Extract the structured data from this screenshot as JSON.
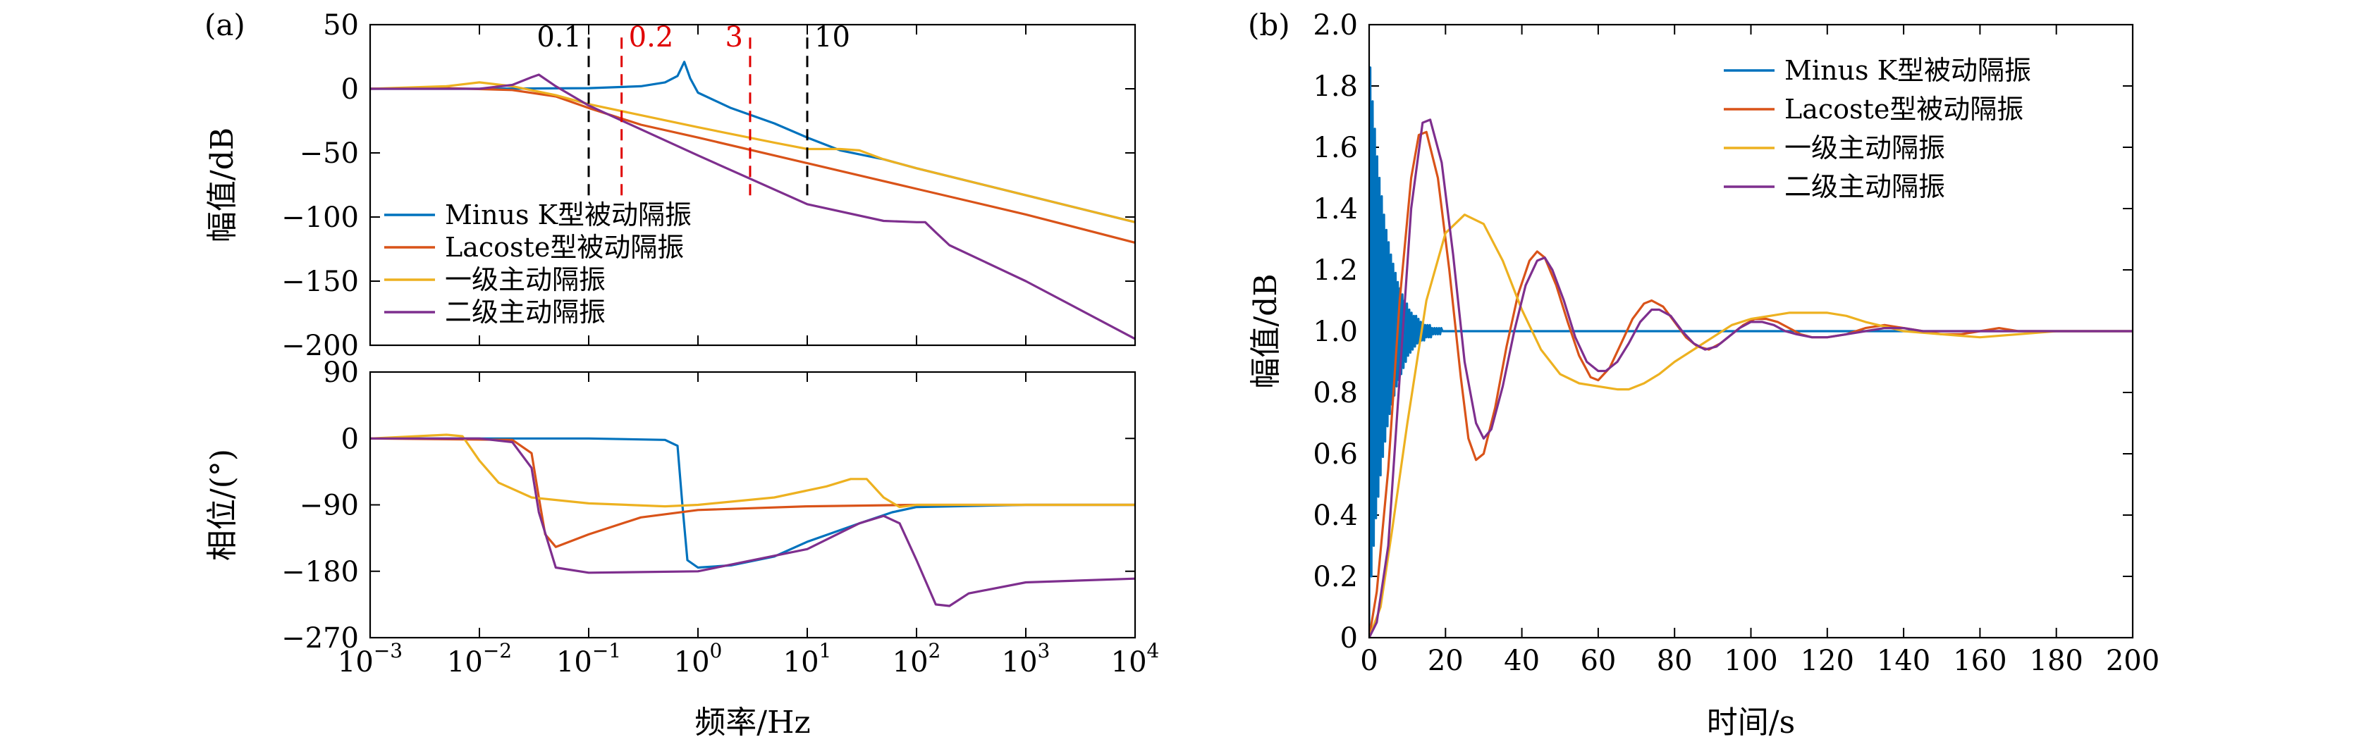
{
  "colors": {
    "minus_k": "#0072BD",
    "lacoste": "#D95319",
    "single_active": "#EDB120",
    "double_active": "#7E2F8E",
    "marker_black": "#000000",
    "marker_red": "#E00000"
  },
  "panel_labels": {
    "a": "(a)",
    "b": "(b)"
  },
  "chart_data": [
    {
      "id": "magnitude",
      "type": "line",
      "xscale": "log",
      "xlim": [
        0.001,
        10000
      ],
      "ylim": [
        -200,
        50
      ],
      "yticks": [
        -200,
        -150,
        -100,
        -50,
        0,
        50
      ],
      "ytick_labels": [
        "−200",
        "−150",
        "−100",
        "−50",
        "0",
        "50"
      ],
      "ylabel": "幅值/dB",
      "legend_position": "lower-left",
      "markers": [
        {
          "x": 0.1,
          "label": "0.1",
          "color": "black"
        },
        {
          "x": 0.2,
          "label": "0.2",
          "color": "red"
        },
        {
          "x": 3,
          "label": "3",
          "color": "red"
        },
        {
          "x": 10,
          "label": "10",
          "color": "black"
        }
      ],
      "series": [
        {
          "name": "Minus K型被动隔振",
          "color": "#0072BD",
          "x": [
            0.001,
            0.01,
            0.1,
            0.3,
            0.5,
            0.65,
            0.75,
            0.85,
            1,
            2,
            5,
            10,
            20,
            50,
            100,
            1000,
            10000
          ],
          "y": [
            0,
            0,
            0.5,
            2,
            5,
            10,
            21,
            8,
            -3,
            -15,
            -27,
            -38,
            -48,
            -55,
            -62,
            -83,
            -104
          ]
        },
        {
          "name": "Lacoste型被动隔振",
          "color": "#D95319",
          "x": [
            0.001,
            0.005,
            0.02,
            0.05,
            0.1,
            0.3,
            1,
            10,
            100,
            1000,
            10000
          ],
          "y": [
            0,
            0.5,
            -1,
            -6,
            -15,
            -28,
            -38,
            -58,
            -78,
            -98,
            -120
          ]
        },
        {
          "name": "一级主动隔振",
          "color": "#EDB120",
          "x": [
            0.001,
            0.005,
            0.01,
            0.02,
            0.05,
            0.1,
            1,
            5,
            10,
            20,
            30,
            50,
            100,
            1000,
            10000
          ],
          "y": [
            0,
            2,
            5,
            2,
            -5,
            -12,
            -30,
            -42,
            -47,
            -47,
            -48,
            -55,
            -62,
            -83,
            -104
          ]
        },
        {
          "name": "二级主动隔振",
          "color": "#7E2F8E",
          "x": [
            0.001,
            0.01,
            0.02,
            0.03,
            0.035,
            0.05,
            0.1,
            1,
            10,
            50,
            100,
            120,
            150,
            200,
            1000,
            10000
          ],
          "y": [
            0,
            0,
            3,
            9,
            11,
            2,
            -13,
            -52,
            -90,
            -103,
            -104,
            -104,
            -112,
            -122,
            -150,
            -195
          ]
        }
      ]
    },
    {
      "id": "phase",
      "type": "line",
      "xscale": "log",
      "xlim": [
        0.001,
        10000
      ],
      "ylim": [
        -270,
        90
      ],
      "yticks": [
        -270,
        -180,
        -90,
        0,
        90
      ],
      "ytick_labels": [
        "−270",
        "−180",
        "−90",
        "0",
        "90"
      ],
      "xticks": [
        0.001,
        0.01,
        0.1,
        1,
        10,
        100,
        1000,
        10000
      ],
      "xtick_labels": [
        {
          "base": "10",
          "exp": "−3"
        },
        {
          "base": "10",
          "exp": "−2"
        },
        {
          "base": "10",
          "exp": "−1"
        },
        {
          "base": "10",
          "exp": "0"
        },
        {
          "base": "10",
          "exp": "1"
        },
        {
          "base": "10",
          "exp": "2"
        },
        {
          "base": "10",
          "exp": "3"
        },
        {
          "base": "10",
          "exp": "4"
        }
      ],
      "xlabel": "频率/Hz",
      "ylabel": "相位/(°)",
      "series": [
        {
          "name": "Minus K型被动隔振",
          "color": "#0072BD",
          "x": [
            0.001,
            0.1,
            0.5,
            0.65,
            0.72,
            0.8,
            1,
            2,
            5,
            10,
            30,
            60,
            100,
            1000,
            10000
          ],
          "y": [
            0,
            0,
            -2,
            -10,
            -90,
            -165,
            -175,
            -172,
            -160,
            -140,
            -115,
            -100,
            -93,
            -90,
            -90
          ]
        },
        {
          "name": "Lacoste型被动隔振",
          "color": "#D95319",
          "x": [
            0.001,
            0.02,
            0.03,
            0.035,
            0.04,
            0.05,
            0.1,
            0.3,
            1,
            10,
            100,
            10000
          ],
          "y": [
            0,
            -2,
            -20,
            -80,
            -130,
            -147,
            -130,
            -107,
            -97,
            -92,
            -90,
            -90
          ]
        },
        {
          "name": "一级主动隔振",
          "color": "#EDB120",
          "x": [
            0.001,
            0.005,
            0.007,
            0.01,
            0.015,
            0.03,
            0.1,
            0.5,
            1,
            5,
            15,
            25,
            35,
            50,
            70,
            100,
            10000
          ],
          "y": [
            0,
            5,
            3,
            -30,
            -60,
            -80,
            -88,
            -92,
            -90,
            -80,
            -65,
            -55,
            -55,
            -80,
            -93,
            -90,
            -90
          ]
        },
        {
          "name": "二级主动隔振",
          "color": "#7E2F8E",
          "x": [
            0.001,
            0.01,
            0.02,
            0.03,
            0.035,
            0.05,
            0.1,
            1,
            10,
            30,
            50,
            70,
            100,
            150,
            200,
            300,
            1000,
            10000
          ],
          "y": [
            0,
            0,
            -5,
            -40,
            -100,
            -175,
            -182,
            -180,
            -150,
            -115,
            -105,
            -115,
            -165,
            -225,
            -227,
            -210,
            -195,
            -190
          ]
        }
      ]
    },
    {
      "id": "step",
      "type": "line",
      "xlim": [
        0,
        200
      ],
      "ylim": [
        0,
        2
      ],
      "xticks": [
        0,
        20,
        40,
        60,
        80,
        100,
        120,
        140,
        160,
        180,
        200
      ],
      "xtick_labels": [
        "0",
        "20",
        "40",
        "60",
        "80",
        "100",
        "120",
        "140",
        "160",
        "180",
        "200"
      ],
      "yticks": [
        0,
        0.2,
        0.4,
        0.6,
        0.8,
        1.0,
        1.2,
        1.4,
        1.6,
        1.8,
        2.0
      ],
      "ytick_labels": [
        "0",
        "0.2",
        "0.4",
        "0.6",
        "0.8",
        "1.0",
        "1.2",
        "1.4",
        "1.6",
        "1.8",
        "2.0"
      ],
      "xlabel": "时间/s",
      "ylabel": "幅值/dB",
      "legend_position": "top-right",
      "series": [
        {
          "name": "Minus K型被动隔振",
          "color": "#0072BD",
          "x": [
            0,
            0.3,
            0.6,
            0.9,
            1.2,
            1.5,
            1.8,
            2.1,
            2.4,
            2.7,
            3.0,
            3.3,
            3.6,
            3.9,
            4.2,
            4.5,
            4.8,
            5.1,
            5.4,
            5.7,
            6.0,
            6.3,
            6.6,
            6.9,
            7.2,
            7.5,
            7.8,
            8.1,
            8.4,
            8.7,
            9.0,
            9.3,
            9.6,
            9.9,
            10.2,
            10.5,
            10.8,
            11.1,
            11.4,
            11.7,
            12.0,
            12.3,
            12.6,
            12.9,
            13.2,
            13.5,
            13.8,
            14.1,
            14.4,
            14.7,
            15.0,
            15.3,
            15.6,
            15.9,
            16.2,
            16.5,
            16.8,
            17.1,
            17.4,
            17.7,
            18.0,
            18.3,
            18.6,
            18.9,
            19.2,
            19.5,
            19.8,
            20.1,
            20.4,
            20.7,
            21.0,
            21.3,
            21.6,
            21.9,
            22.2,
            22.5,
            22.8,
            23.1,
            23.4,
            23.7,
            24.0,
            24.3,
            24.6,
            24.9,
            25.2,
            25.5,
            25.8,
            26.1,
            26.4,
            26.7,
            27.0,
            27.3,
            27.6,
            27.9,
            28.2,
            28.5,
            28.8,
            29.1,
            29.4,
            29.7,
            30,
            200
          ],
          "y": [
            0,
            1.86,
            0.2,
            1.75,
            0.3,
            1.66,
            0.39,
            1.57,
            0.46,
            1.5,
            0.53,
            1.44,
            0.59,
            1.38,
            0.64,
            1.33,
            0.69,
            1.29,
            0.73,
            1.25,
            0.76,
            1.22,
            0.79,
            1.19,
            0.82,
            1.16,
            0.84,
            1.14,
            0.86,
            1.12,
            0.88,
            1.1,
            0.9,
            1.09,
            0.92,
            1.07,
            0.93,
            1.06,
            0.94,
            1.05,
            0.95,
            1.05,
            0.96,
            1.04,
            0.96,
            1.03,
            0.97,
            1.03,
            0.97,
            1.02,
            0.98,
            1.02,
            0.98,
            1.02,
            0.98,
            1.01,
            0.99,
            1.01,
            0.99,
            1.01,
            0.99,
            1.01,
            0.99,
            1.01,
            1.0,
            1.0,
            1.0,
            1.0,
            1.0,
            1.0,
            1.0,
            1.0,
            1.0,
            1.0,
            1.0,
            1.0,
            1.0,
            1.0,
            1.0,
            1.0,
            1.0,
            1.0,
            1.0,
            1.0,
            1.0,
            1.0,
            1.0,
            1.0,
            1.0,
            1.0,
            1.0,
            1.0,
            1.0,
            1.0,
            1.0,
            1.0,
            1.0,
            1.0,
            1.0,
            1.0,
            1.0,
            1.0
          ]
        },
        {
          "name": "Lacoste型被动隔振",
          "color": "#D95319",
          "x": [
            0,
            2,
            5,
            8,
            11,
            13,
            15,
            18,
            21,
            24,
            26,
            28,
            30,
            33,
            36,
            39,
            42,
            44,
            46,
            49,
            52,
            55,
            58,
            60,
            63,
            66,
            69,
            72,
            74,
            77,
            80,
            83,
            86,
            89,
            92,
            95,
            98,
            101,
            104,
            107,
            110,
            113,
            116,
            120,
            125,
            130,
            135,
            140,
            145,
            150,
            155,
            160,
            165,
            170,
            175,
            180,
            190,
            200
          ],
          "y": [
            0,
            0.15,
            0.55,
            1.1,
            1.5,
            1.64,
            1.65,
            1.5,
            1.2,
            0.85,
            0.65,
            0.58,
            0.6,
            0.75,
            0.95,
            1.12,
            1.23,
            1.26,
            1.24,
            1.15,
            1.03,
            0.92,
            0.85,
            0.84,
            0.88,
            0.96,
            1.04,
            1.09,
            1.1,
            1.08,
            1.03,
            0.98,
            0.95,
            0.94,
            0.96,
            0.99,
            1.02,
            1.04,
            1.04,
            1.03,
            1.01,
            0.99,
            0.98,
            0.98,
            0.99,
            1.01,
            1.02,
            1.01,
            1.0,
            0.99,
            0.99,
            1.0,
            1.01,
            1.0,
            1.0,
            1.0,
            1.0,
            1.0
          ]
        },
        {
          "name": "一级主动隔振",
          "color": "#EDB120",
          "x": [
            0,
            3,
            6,
            10,
            15,
            20,
            25,
            30,
            35,
            40,
            45,
            50,
            55,
            60,
            65,
            68,
            72,
            76,
            80,
            85,
            90,
            95,
            100,
            105,
            110,
            115,
            120,
            125,
            130,
            140,
            150,
            160,
            170,
            180,
            190,
            200
          ],
          "y": [
            0,
            0.1,
            0.35,
            0.7,
            1.1,
            1.32,
            1.38,
            1.35,
            1.23,
            1.07,
            0.94,
            0.86,
            0.83,
            0.82,
            0.81,
            0.81,
            0.83,
            0.86,
            0.9,
            0.94,
            0.98,
            1.02,
            1.04,
            1.05,
            1.06,
            1.06,
            1.06,
            1.05,
            1.03,
            1.0,
            0.99,
            0.98,
            0.99,
            1.0,
            1.0,
            1.0
          ]
        },
        {
          "name": "二级主动隔振",
          "color": "#7E2F8E",
          "x": [
            0,
            2,
            5,
            8,
            11,
            14,
            16,
            19,
            22,
            25,
            28,
            30,
            32,
            35,
            38,
            41,
            44,
            46,
            48,
            51,
            54,
            57,
            60,
            62,
            65,
            68,
            71,
            74,
            76,
            79,
            82,
            85,
            88,
            91,
            94,
            97,
            100,
            103,
            106,
            109,
            112,
            116,
            120,
            125,
            130,
            135,
            140,
            145,
            150,
            155,
            160,
            165,
            170,
            175,
            180,
            190,
            200
          ],
          "y": [
            0,
            0.05,
            0.3,
            0.85,
            1.4,
            1.68,
            1.69,
            1.55,
            1.25,
            0.9,
            0.7,
            0.65,
            0.68,
            0.82,
            1.0,
            1.15,
            1.23,
            1.24,
            1.2,
            1.1,
            0.98,
            0.9,
            0.87,
            0.87,
            0.9,
            0.96,
            1.03,
            1.07,
            1.07,
            1.05,
            1.0,
            0.96,
            0.94,
            0.95,
            0.98,
            1.01,
            1.03,
            1.03,
            1.02,
            1.0,
            0.99,
            0.98,
            0.98,
            0.99,
            1.0,
            1.01,
            1.01,
            1.0,
            1.0,
            1.0,
            1.0,
            1.0,
            1.0,
            1.0,
            1.0,
            1.0,
            1.0
          ]
        }
      ]
    }
  ]
}
